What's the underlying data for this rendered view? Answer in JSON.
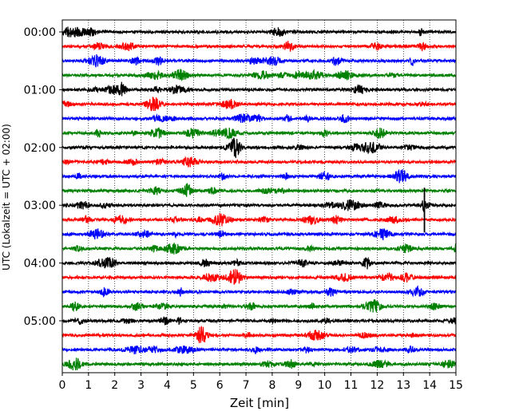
{
  "chart_data": {
    "type": "line",
    "chart_kind": "seismic helicorder (drum plot)",
    "xlabel": "Zeit  [min]",
    "ylabel": "UTC (Lokalzeit = UTC + 02:00)",
    "xlim": [
      0,
      15
    ],
    "x_ticks": [
      0,
      1,
      2,
      3,
      4,
      5,
      6,
      7,
      8,
      9,
      10,
      11,
      12,
      13,
      14,
      15
    ],
    "y_ticks": [
      {
        "row": 0,
        "label": "00:00"
      },
      {
        "row": 4,
        "label": "01:00"
      },
      {
        "row": 8,
        "label": "02:00"
      },
      {
        "row": 12,
        "label": "03:00"
      },
      {
        "row": 16,
        "label": "04:00"
      },
      {
        "row": 20,
        "label": "05:00"
      }
    ],
    "row_minutes": 15,
    "rows": 24,
    "vertical_grid": "dotted at every minute",
    "row_colors": [
      "#000000",
      "#ff0000",
      "#0000ff",
      "#008000"
    ],
    "notable_events": [
      {
        "row": 12,
        "minute": 13.8,
        "description": "large spike extending into neighbouring rows"
      },
      {
        "row": 7,
        "minute": 12.1,
        "description": "wider burst"
      },
      {
        "row": 8,
        "minute": 6.6,
        "description": "burst"
      }
    ]
  }
}
